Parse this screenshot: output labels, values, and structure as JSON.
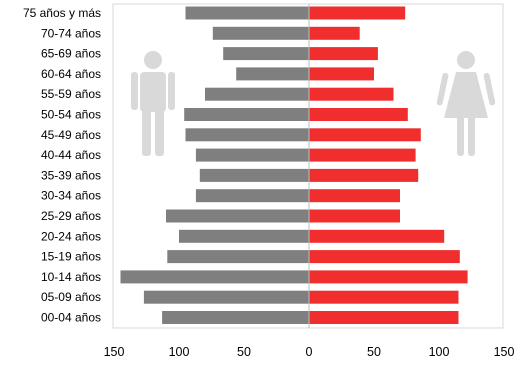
{
  "chart_data": {
    "type": "bar",
    "orientation": "horizontal",
    "categories": [
      "75 años y más",
      "70-74 años",
      "65-69 años",
      "60-64 años",
      "55-59 años",
      "50-54 años",
      "45-49 años",
      "40-44 años",
      "35-39 años",
      "30-34 años",
      "25-29 años",
      "20-24 años",
      "15-19 años",
      "10-14 años",
      "05-09 años",
      "00-04 años"
    ],
    "series": [
      {
        "color": "#7f7f7f",
        "side": "left",
        "values": [
          95,
          74,
          66,
          56,
          80,
          96,
          95,
          87,
          84,
          87,
          110,
          100,
          109,
          145,
          127,
          113
        ]
      },
      {
        "color": "#f02e2e",
        "side": "right",
        "values": [
          74,
          39,
          53,
          50,
          65,
          76,
          86,
          82,
          84,
          70,
          70,
          104,
          116,
          122,
          115,
          115
        ]
      }
    ],
    "xlim": [
      -150,
      150
    ],
    "x_ticks": [
      "150",
      "100",
      "50",
      "0",
      "50",
      "100",
      "150"
    ],
    "grid": false,
    "legend": "icons",
    "icons": [
      "male-figure-icon",
      "female-figure-icon"
    ]
  }
}
